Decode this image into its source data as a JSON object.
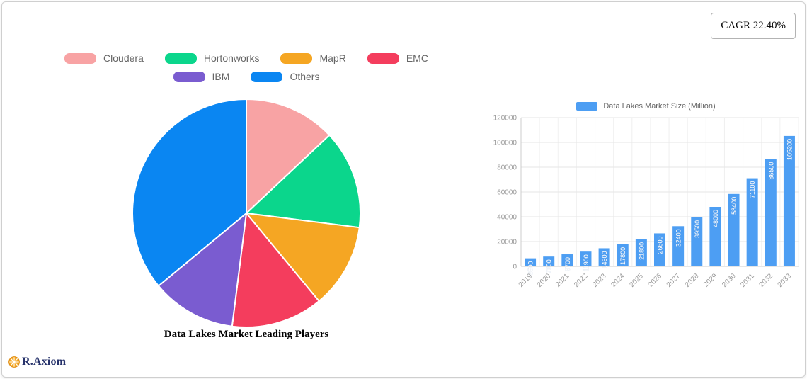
{
  "cagr_badge": {
    "label": "CAGR 22.40%"
  },
  "logo": {
    "text": "R.Axiom"
  },
  "chart_data": [
    {
      "type": "pie",
      "title": "Data Lakes Market Leading Players",
      "labels": [
        "Cloudera",
        "Hortonworks",
        "MapR",
        "EMC",
        "IBM",
        "Others"
      ],
      "values": [
        13,
        14,
        12,
        13,
        12,
        36
      ],
      "colors": [
        "#F8A3A4",
        "#0BD68C",
        "#F5A623",
        "#F43D5D",
        "#7A5CD0",
        "#0A86F2"
      ],
      "legend_position": "top",
      "legend_rows": [
        [
          "Cloudera",
          "Hortonworks",
          "MapR",
          "EMC"
        ],
        [
          "IBM",
          "Others"
        ]
      ]
    },
    {
      "type": "bar",
      "categories": [
        "2019",
        "2020",
        "2021",
        "2022",
        "2023",
        "2024",
        "2025",
        "2026",
        "2027",
        "2028",
        "2029",
        "2030",
        "2031",
        "2032",
        "2033"
      ],
      "series": [
        {
          "name": "Data Lakes Market Size (Million)",
          "values": [
            6500,
            7900,
            9700,
            11900,
            14600,
            17800,
            21800,
            26600,
            32400,
            39500,
            48000,
            58400,
            71100,
            86500,
            105200
          ]
        }
      ],
      "bar_color": "#4D9EF3",
      "ylim": [
        0,
        120000
      ],
      "yticks": [
        0,
        20000,
        40000,
        60000,
        80000,
        100000,
        120000
      ],
      "grid": true,
      "legend_position": "top",
      "value_labels": "rotated-vertical-inside-top"
    }
  ]
}
